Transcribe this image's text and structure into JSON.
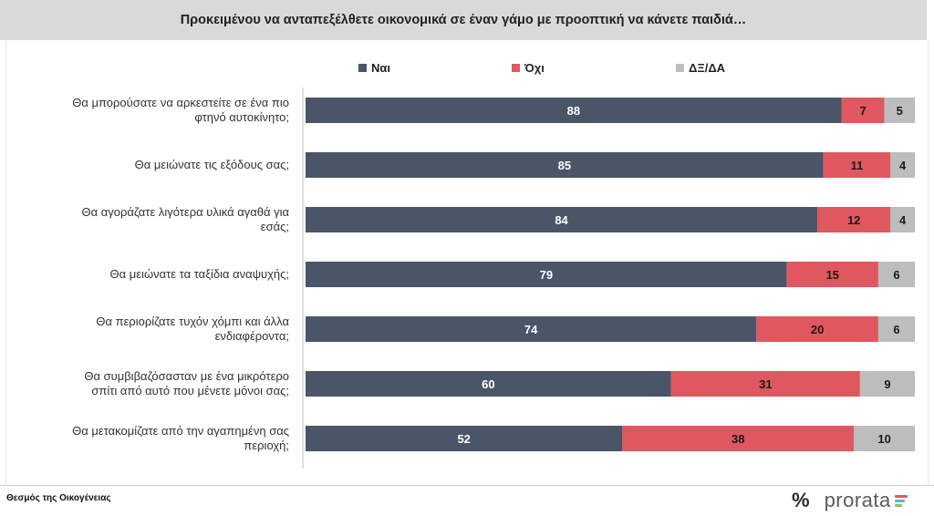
{
  "title": "Προκειμένου να ανταπεξέλθετε οικονομικά σε έναν γάμο με προοπτική να κάνετε παιδιά…",
  "source": "Θεσμός της Οικογένειας",
  "logo": {
    "symbol": "%",
    "text": "prorata"
  },
  "colors": {
    "yes": "#4b5568",
    "no": "#e0585f",
    "dk": "#bdbdbd",
    "logo_bars": [
      "#e0585f",
      "#5fb3c9",
      "#8ac06a"
    ]
  },
  "chart_data": {
    "type": "bar",
    "orientation": "horizontal",
    "stacked": true,
    "categories": [
      [
        "Θα μπορούσατε να αρκεστείτε σε ένα πιο",
        "φτηνό αυτοκίνητο;"
      ],
      [
        "Θα μειώνατε τις εξόδους σας;"
      ],
      [
        "Θα αγοράζατε λιγότερα υλικά αγαθά για",
        "εσάς;"
      ],
      [
        "Θα μειώνατε τα ταξίδια αναψυχής;"
      ],
      [
        "Θα περιορίζατε τυχόν χόμπι και άλλα",
        "ενδιαφέροντα;"
      ],
      [
        "Θα συμβιβαζόσασταν με ένα μικρότερο",
        "σπίτι από αυτό που μένετε μόνοι σας;"
      ],
      [
        "Θα μετακομίζατε από την αγαπημένη σας",
        "περιοχή;"
      ]
    ],
    "series": [
      {
        "name": "Ναι",
        "values": [
          88,
          85,
          84,
          79,
          74,
          60,
          52
        ]
      },
      {
        "name": "Όχι",
        "values": [
          7,
          11,
          12,
          15,
          20,
          31,
          38
        ]
      },
      {
        "name": "ΔΞ/ΔΑ",
        "values": [
          5,
          4,
          4,
          6,
          6,
          9,
          10
        ]
      }
    ],
    "xlim": [
      0,
      100
    ],
    "legend_position": "top",
    "data_labels": true
  }
}
